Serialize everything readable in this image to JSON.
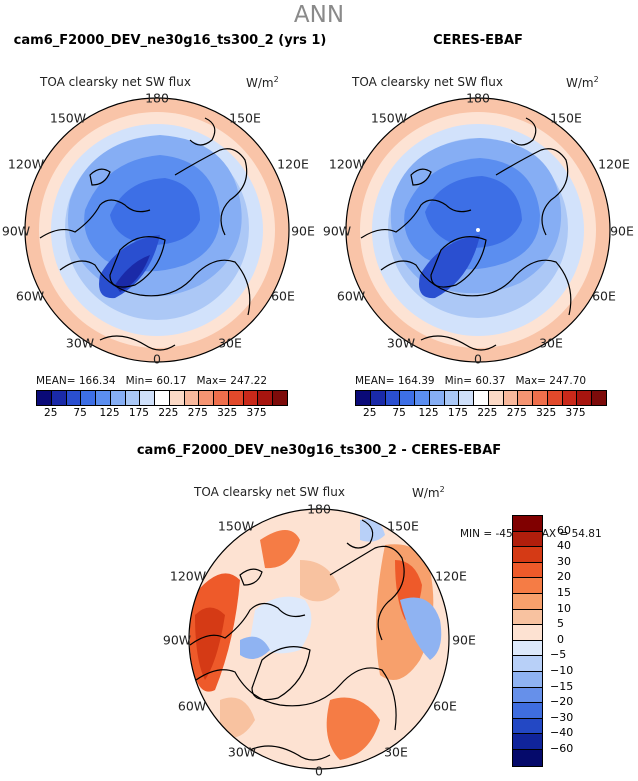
{
  "page_title": "ANN",
  "panels": [
    {
      "title": "cam6_F2000_DEV_ne30g16_ts300_2 (yrs 1)",
      "var_label": "TOA clearsky net SW flux",
      "units": "W/m",
      "units_sup": "2",
      "stats": {
        "mean": "MEAN= 166.34",
        "min": "Min=  60.17",
        "max": "Max= 247.22"
      }
    },
    {
      "title": "CERES-EBAF",
      "var_label": "TOA clearsky net SW flux",
      "units": "W/m",
      "units_sup": "2",
      "stats": {
        "mean": "MEAN= 164.39",
        "min": "Min=  60.37",
        "max": "Max= 247.70"
      }
    }
  ],
  "diff_panel": {
    "title": "cam6_F2000_DEV_ne30g16_ts300_2 - CERES-EBAF",
    "var_label": "TOA clearsky net SW flux",
    "units": "W/m",
    "units_sup": "2",
    "stats": "MIN = -45.35  MAX =  54.81"
  },
  "lon_labels": {
    "top": "180",
    "tr": "150E",
    "right_up": "120E",
    "right": "90E",
    "right_dn": "60E",
    "br": "30E",
    "bottom": "0",
    "bl": "30W",
    "left_dn": "60W",
    "left": "90W",
    "left_up": "120W",
    "tl": "150W"
  },
  "colorbar_main": {
    "ticks": [
      "25",
      "75",
      "125",
      "175",
      "225",
      "275",
      "325",
      "375"
    ],
    "colors": [
      "#0a0a78",
      "#1a2aa8",
      "#2a4fd0",
      "#3d6fe6",
      "#5b8ef0",
      "#86aef4",
      "#aac8f6",
      "#cfe0fa",
      "#ffffff",
      "#fbd9c6",
      "#f8b89c",
      "#f59472",
      "#ef6f4c",
      "#e2492b",
      "#c9291a",
      "#a7150f",
      "#7d0b0a"
    ]
  },
  "colorbar_diff": {
    "ticks": [
      "60",
      "40",
      "30",
      "20",
      "15",
      "10",
      "5",
      "0",
      "−5",
      "−10",
      "−15",
      "−20",
      "−30",
      "−40",
      "−60"
    ],
    "colors": [
      "#800000",
      "#b01e0c",
      "#d53a15",
      "#ee5a2a",
      "#f57c45",
      "#f7a06c",
      "#f8c2a0",
      "#fde2d2",
      "#dde9fb",
      "#b8d0f8",
      "#8fb3f2",
      "#6690ea",
      "#3f6ddf",
      "#2348c4",
      "#10249b",
      "#050a6b"
    ]
  }
}
